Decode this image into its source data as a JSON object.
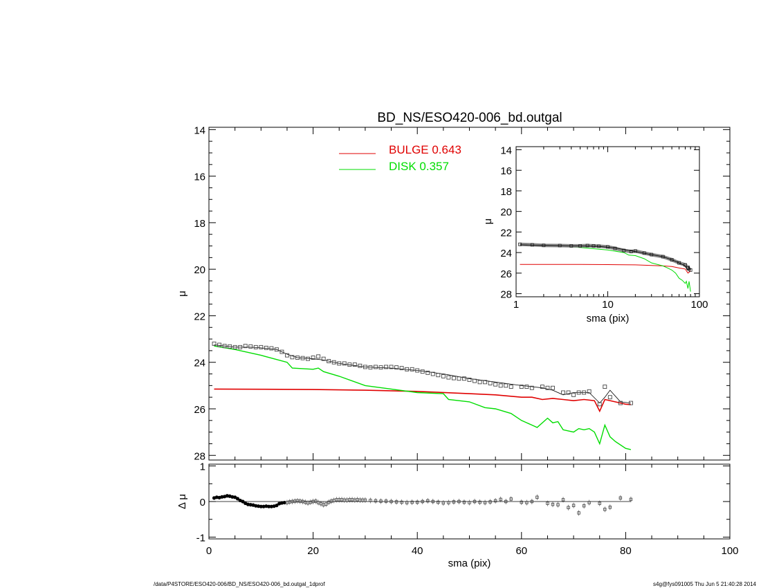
{
  "title": "BD_NS/ESO420-006_bd.outgal",
  "footer_left": "/data/P4STORE/ESO420-006/BD_NS/ESO420-006_bd.outgal_1dprof",
  "footer_right": "s4g@fys091005  Thu Jun  5 21:40:28 2014",
  "colors": {
    "data": "#000000",
    "model": "#000000",
    "bulge": "#e00000",
    "disk": "#00dd00",
    "zero_line": "#000000"
  },
  "legend": [
    {
      "label": "BULGE  0.643",
      "color": "#e00000"
    },
    {
      "label": "DISK  0.357",
      "color": "#00dd00"
    }
  ],
  "chart_data": [
    {
      "name": "main",
      "type": "line",
      "xlabel": "",
      "ylabel": "μ",
      "xlim": [
        0,
        100
      ],
      "ylim": [
        28.2,
        13.9
      ],
      "y_inverted": true,
      "xticks": [
        0,
        20,
        40,
        60,
        80,
        100
      ],
      "yticks": [
        14,
        16,
        18,
        20,
        22,
        24,
        26,
        28
      ],
      "series": [
        {
          "name": "data",
          "style": "square-markers",
          "x": [
            1,
            2,
            3,
            4,
            5,
            6,
            7,
            8,
            9,
            10,
            11,
            12,
            13,
            14,
            15,
            16,
            17,
            18,
            19,
            20,
            21,
            22,
            23,
            24,
            25,
            26,
            27,
            28,
            29,
            30,
            31,
            32,
            33,
            34,
            35,
            36,
            37,
            38,
            39,
            40,
            41,
            42,
            43,
            44,
            45,
            46,
            47,
            48,
            49,
            50,
            51,
            52,
            53,
            54,
            55,
            56,
            57,
            58,
            60,
            61,
            62,
            64,
            65,
            66,
            68,
            69,
            70,
            71,
            72,
            73,
            75,
            76,
            77,
            79,
            81
          ],
          "y": [
            23.2,
            23.25,
            23.3,
            23.32,
            23.35,
            23.35,
            23.3,
            23.32,
            23.35,
            23.35,
            23.38,
            23.4,
            23.45,
            23.55,
            23.7,
            23.78,
            23.8,
            23.82,
            23.85,
            23.8,
            23.75,
            23.85,
            23.95,
            24.0,
            24.05,
            24.05,
            24.1,
            24.1,
            24.15,
            24.2,
            24.22,
            24.2,
            24.22,
            24.2,
            24.2,
            24.22,
            24.25,
            24.3,
            24.3,
            24.35,
            24.4,
            24.45,
            24.5,
            24.55,
            24.6,
            24.65,
            24.68,
            24.7,
            24.7,
            24.75,
            24.8,
            24.85,
            24.85,
            24.9,
            24.95,
            25.0,
            25.0,
            25.05,
            25.05,
            25.05,
            25.1,
            25.05,
            25.1,
            25.1,
            25.3,
            25.3,
            25.4,
            25.3,
            25.3,
            25.25,
            25.8,
            25.05,
            25.5,
            25.75,
            25.75
          ]
        },
        {
          "name": "model",
          "style": "line",
          "x": [
            1,
            3,
            5,
            8,
            10,
            13,
            15,
            17,
            20,
            22,
            25,
            30,
            35,
            40,
            45,
            50,
            55,
            60,
            62,
            64,
            66,
            68,
            70,
            72,
            73,
            75,
            76,
            77,
            79,
            81
          ],
          "y": [
            23.25,
            23.3,
            23.35,
            23.35,
            23.38,
            23.45,
            23.65,
            23.8,
            23.85,
            23.9,
            24.05,
            24.2,
            24.25,
            24.35,
            24.5,
            24.7,
            24.85,
            25.0,
            25.05,
            25.1,
            25.2,
            25.4,
            25.3,
            25.3,
            25.3,
            25.75,
            25.5,
            25.2,
            25.7,
            25.75
          ]
        },
        {
          "name": "bulge",
          "style": "line",
          "x": [
            1,
            10,
            20,
            30,
            40,
            50,
            55,
            60,
            62,
            64,
            66,
            68,
            70,
            72,
            74,
            75,
            76,
            78,
            80,
            81
          ],
          "y": [
            25.15,
            25.16,
            25.17,
            25.2,
            25.25,
            25.35,
            25.4,
            25.5,
            25.5,
            25.6,
            25.55,
            25.6,
            25.65,
            25.6,
            25.65,
            26.1,
            25.6,
            25.7,
            25.8,
            25.82
          ]
        },
        {
          "name": "disk",
          "style": "line",
          "x": [
            1,
            5,
            10,
            15,
            16,
            20,
            21,
            22,
            25,
            30,
            35,
            40,
            45,
            46,
            50,
            53,
            55,
            58,
            60,
            62,
            63,
            65,
            66,
            67,
            68,
            70,
            71,
            72,
            73,
            74,
            75,
            76,
            77,
            78,
            80,
            81
          ],
          "y": [
            23.3,
            23.45,
            23.7,
            24.0,
            24.25,
            24.3,
            24.25,
            24.4,
            24.6,
            25.0,
            25.15,
            25.3,
            25.35,
            25.6,
            25.7,
            25.95,
            26.0,
            26.2,
            26.5,
            26.7,
            26.8,
            26.4,
            26.6,
            26.55,
            26.9,
            27.0,
            26.85,
            26.9,
            26.85,
            27.0,
            27.5,
            26.7,
            27.2,
            27.4,
            27.7,
            27.75
          ]
        }
      ]
    },
    {
      "name": "residual",
      "type": "scatter",
      "xlabel": "sma (pix)",
      "ylabel": "Δ μ",
      "xlim": [
        0,
        100
      ],
      "ylim": [
        -1.05,
        1.05
      ],
      "xticks": [
        0,
        20,
        40,
        60,
        80,
        100
      ],
      "yticks": [
        -1,
        0,
        1
      ],
      "x": [
        1,
        1.5,
        2,
        2.5,
        3,
        3.5,
        4,
        4.5,
        5,
        5.5,
        6,
        6.5,
        7,
        7.5,
        8,
        8.5,
        9,
        9.5,
        10,
        10.5,
        11,
        11.5,
        12,
        12.5,
        13,
        13.5,
        14,
        14.5,
        15,
        15.5,
        16,
        16.5,
        17,
        17.5,
        18,
        18.5,
        19,
        19.5,
        20,
        20.5,
        21,
        21.5,
        22,
        22.5,
        23,
        23.5,
        24,
        24.5,
        25,
        25.5,
        26,
        26.5,
        27,
        27.5,
        28,
        28.5,
        29,
        29.5,
        30,
        31,
        32,
        33,
        34,
        35,
        36,
        37,
        38,
        39,
        40,
        41,
        42,
        43,
        44,
        45,
        46,
        47,
        48,
        49,
        50,
        51,
        52,
        53,
        54,
        55,
        56,
        57,
        58,
        60,
        61,
        62,
        63,
        65,
        66,
        67,
        68,
        69,
        70,
        71,
        72,
        73,
        75,
        76,
        77,
        79,
        81
      ],
      "y": [
        0.1,
        0.12,
        0.11,
        0.13,
        0.14,
        0.16,
        0.15,
        0.13,
        0.12,
        0.08,
        0.03,
        0.0,
        -0.05,
        -0.08,
        -0.09,
        -0.1,
        -0.12,
        -0.13,
        -0.14,
        -0.14,
        -0.13,
        -0.14,
        -0.14,
        -0.13,
        -0.11,
        -0.06,
        -0.04,
        -0.03,
        -0.03,
        -0.01,
        0.0,
        0.01,
        0.02,
        0.01,
        0.0,
        -0.02,
        -0.04,
        -0.02,
        0.0,
        0.01,
        -0.03,
        -0.06,
        -0.09,
        -0.07,
        -0.02,
        0.01,
        0.03,
        0.05,
        0.05,
        0.05,
        0.04,
        0.04,
        0.05,
        0.05,
        0.04,
        0.05,
        0.04,
        0.04,
        0.04,
        0.03,
        0.02,
        0.01,
        0.01,
        0.0,
        -0.01,
        -0.02,
        -0.03,
        -0.02,
        -0.02,
        0.0,
        0.02,
        0.0,
        -0.02,
        -0.04,
        -0.03,
        -0.01,
        0.0,
        -0.02,
        -0.03,
        0.0,
        -0.02,
        -0.03,
        -0.01,
        0.02,
        0.06,
        0.0,
        0.07,
        -0.02,
        -0.03,
        0.0,
        0.12,
        -0.05,
        -0.08,
        -0.09,
        0.05,
        -0.17,
        -0.11,
        -0.32,
        -0.12,
        -0.03,
        -0.05,
        -0.22,
        -0.16,
        0.1,
        0.06
      ]
    },
    {
      "name": "inset",
      "type": "line",
      "xlabel": "sma (pix)",
      "ylabel": "μ",
      "xscale": "log",
      "xlim": [
        1,
        100
      ],
      "ylim": [
        28.3,
        13.7
      ],
      "y_inverted": true,
      "xticks": [
        1,
        10,
        100
      ],
      "yticks": [
        14,
        16,
        18,
        20,
        22,
        24,
        26,
        28
      ],
      "series": [
        {
          "name": "data",
          "style": "thick-markers",
          "x": [
            1.1,
            1.5,
            2,
            3,
            4,
            5,
            6,
            7,
            8,
            10,
            12,
            15,
            18,
            20,
            25,
            30,
            40,
            50,
            60,
            70,
            75,
            80
          ],
          "y": [
            23.2,
            23.25,
            23.3,
            23.32,
            23.35,
            23.35,
            23.32,
            23.35,
            23.38,
            23.45,
            23.6,
            23.8,
            23.9,
            23.85,
            24.05,
            24.2,
            24.4,
            24.7,
            25.0,
            25.2,
            25.5,
            25.7
          ]
        },
        {
          "name": "model",
          "style": "line",
          "x": [
            1.1,
            2,
            4,
            8,
            12,
            16,
            20,
            30,
            40,
            50,
            60,
            70,
            75,
            77,
            80
          ],
          "y": [
            23.25,
            23.3,
            23.35,
            23.4,
            23.55,
            23.75,
            23.9,
            24.2,
            24.4,
            24.7,
            25.0,
            25.3,
            25.75,
            25.3,
            25.75
          ]
        },
        {
          "name": "bulge",
          "style": "line",
          "x": [
            1.1,
            5,
            10,
            20,
            30,
            40,
            50,
            60,
            70,
            75,
            80
          ],
          "y": [
            25.15,
            25.16,
            25.17,
            25.2,
            25.25,
            25.3,
            25.35,
            25.5,
            25.6,
            26.0,
            25.8
          ]
        },
        {
          "name": "disk",
          "style": "line",
          "x": [
            1.1,
            2,
            5,
            10,
            15,
            17,
            20,
            25,
            30,
            40,
            45,
            50,
            55,
            60,
            65,
            70,
            72,
            75,
            77,
            80
          ],
          "y": [
            23.3,
            23.35,
            23.5,
            23.75,
            24.0,
            24.25,
            24.3,
            24.6,
            25.0,
            25.3,
            25.5,
            25.7,
            26.0,
            26.5,
            26.7,
            27.0,
            26.8,
            27.5,
            26.8,
            27.8
          ]
        }
      ]
    }
  ]
}
